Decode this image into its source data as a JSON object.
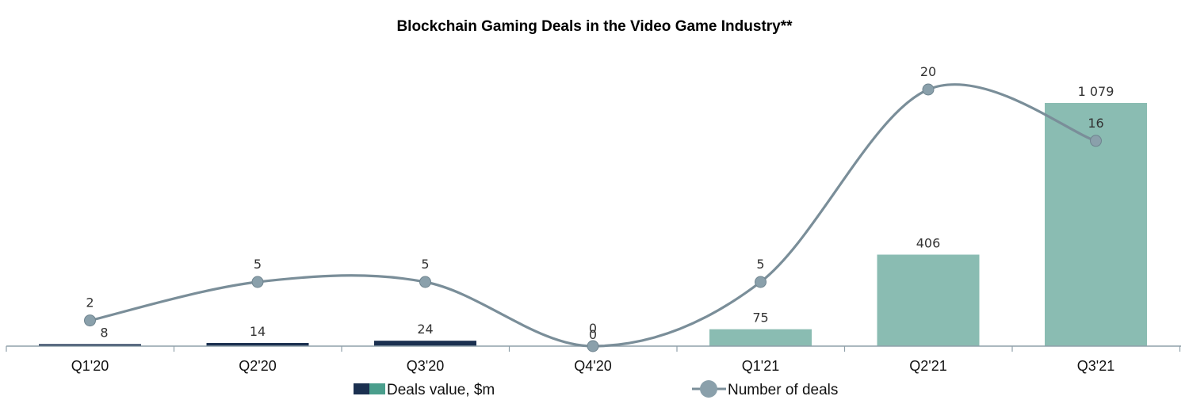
{
  "chart_data": {
    "type": "bar",
    "title": "Blockchain Gaming Deals in the Video Game Industry**",
    "categories": [
      "Q1'20",
      "Q2'20",
      "Q3'20",
      "Q4'20",
      "Q1'21",
      "Q2'21",
      "Q3'21"
    ],
    "series": [
      {
        "name": "Deals value, $m",
        "type": "bar",
        "values": [
          8,
          14,
          24,
          0,
          75,
          406,
          1079
        ],
        "value_labels": [
          "8",
          "14",
          "24",
          "0",
          "75",
          "406",
          "1 079"
        ],
        "colors": [
          "#1b3050",
          "#1b3050",
          "#1b3050",
          "#1b3050",
          "#8abcb2",
          "#8abcb2",
          "#8abcb2"
        ]
      },
      {
        "name": "Number of deals",
        "type": "line",
        "smooth": true,
        "values": [
          2,
          5,
          5,
          0,
          5,
          20,
          16
        ],
        "value_labels": [
          "2",
          "5",
          "5",
          "0",
          "5",
          "20",
          "16"
        ],
        "color": "#7a8e99"
      }
    ],
    "legend": {
      "position": "bottom",
      "bar_swatch_colors": [
        "#1b3050",
        "#4a9e8c"
      ],
      "line_marker_color": "#8aa0ab"
    },
    "grid": false,
    "axis_color": "#8fa0aa"
  }
}
